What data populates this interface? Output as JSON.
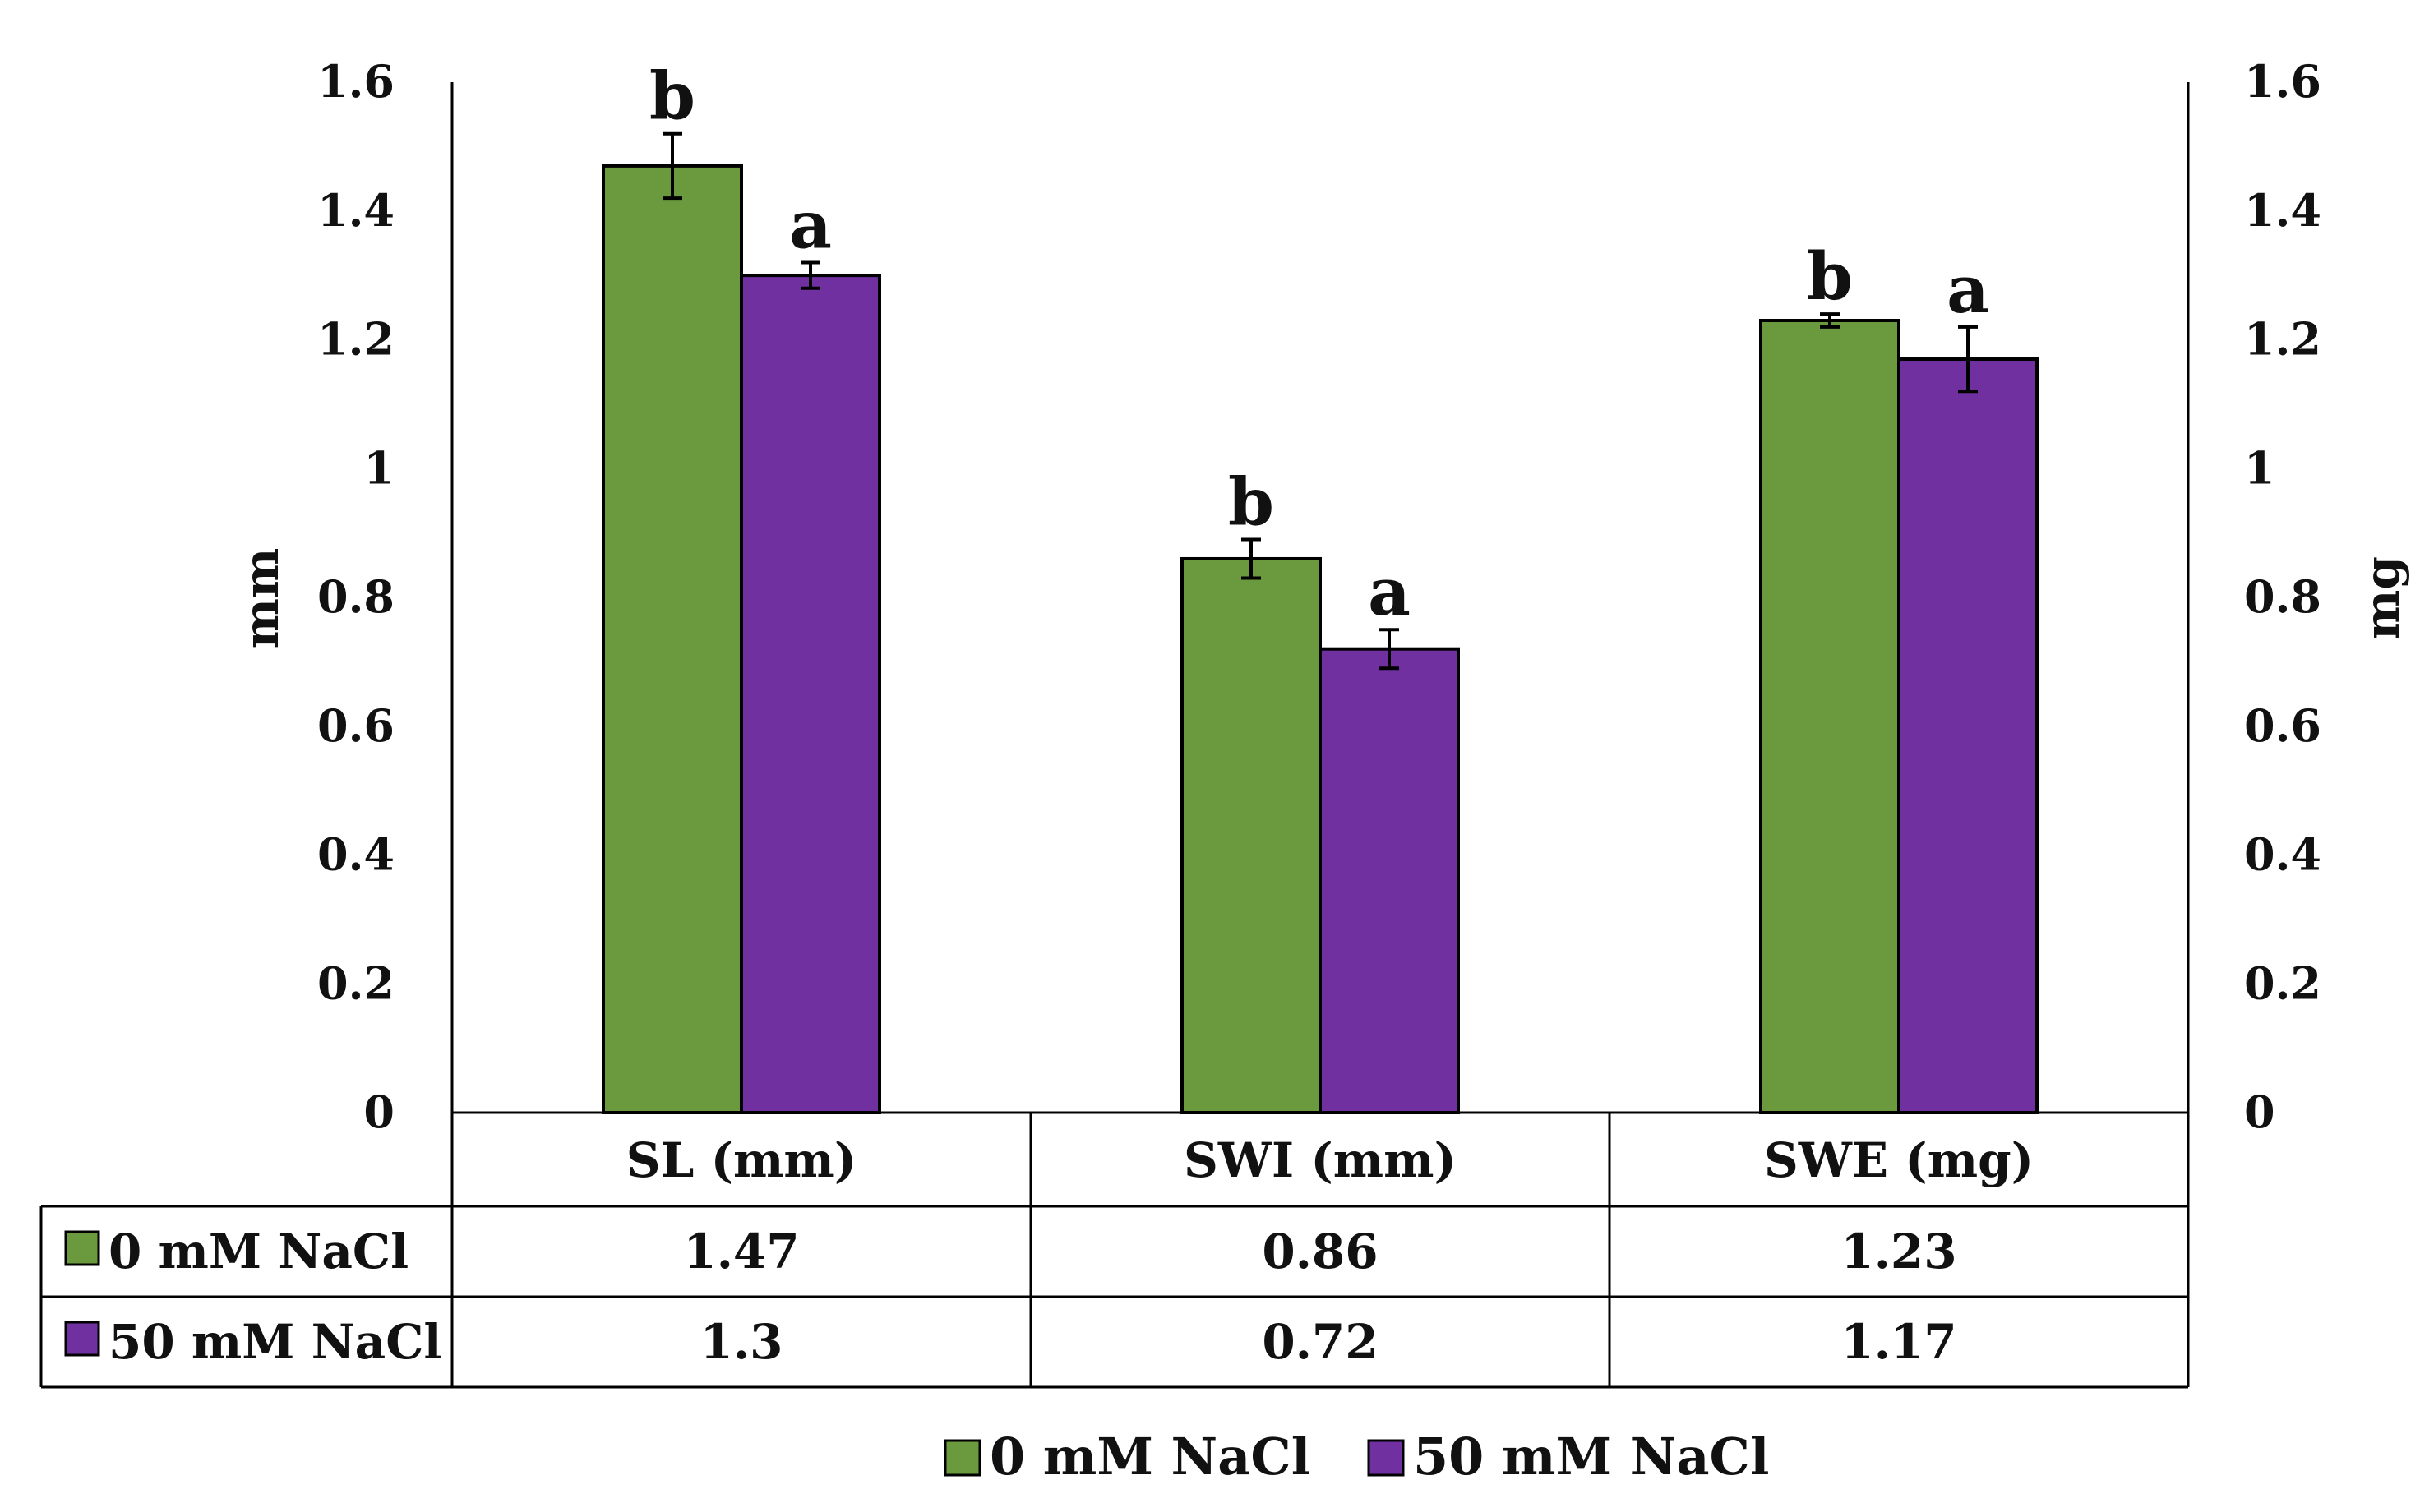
{
  "chart_data": {
    "type": "bar",
    "categories": [
      "SL (mm)",
      "SWI (mm)",
      "SWE (mg)"
    ],
    "series": [
      {
        "name": "0 mM NaCl",
        "color": "#6a9a3d",
        "values": [
          1.47,
          0.86,
          1.23
        ],
        "errors": [
          0.05,
          0.03,
          0.01
        ],
        "labels": [
          "b",
          "b",
          "b"
        ]
      },
      {
        "name": "50 mM NaCl",
        "color": "#7030a0",
        "values": [
          1.3,
          0.72,
          1.17
        ],
        "errors": [
          0.02,
          0.03,
          0.05
        ],
        "labels": [
          "a",
          "a",
          "a"
        ]
      }
    ],
    "ylabel_left": "mm",
    "ylabel_right": "mg",
    "ylim": [
      0,
      1.6
    ],
    "yticks": [
      "0",
      "0.2",
      "0.4",
      "0.6",
      "0.8",
      "1",
      "1.2",
      "1.4",
      "1.6"
    ],
    "table": [
      {
        "name": "0 mM NaCl",
        "cells": [
          "1.47",
          "0.86",
          "1.23"
        ]
      },
      {
        "name": "50 mM NaCl",
        "cells": [
          "1.3",
          "0.72",
          "1.17"
        ]
      }
    ],
    "legend": [
      "0 mM NaCl",
      "50 mM NaCl"
    ],
    "legend_position": "bottom-center",
    "grid": false
  }
}
